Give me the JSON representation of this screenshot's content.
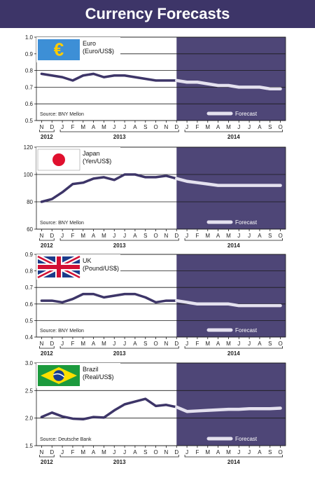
{
  "page_title": "Currency Forecasts",
  "colors": {
    "title_bg": "#3d3568",
    "line": "#3d3568",
    "forecast_bg": "#4e4677",
    "forecast_line": "#e4e1ef",
    "grid": "#1a1a1a",
    "panel_bg": "#ffffff"
  },
  "month_letters": [
    "N",
    "D",
    "J",
    "F",
    "M",
    "A",
    "M",
    "J",
    "J",
    "A",
    "S",
    "O",
    "N",
    "D",
    "J",
    "F",
    "M",
    "A",
    "M",
    "J",
    "J",
    "A",
    "S",
    "O"
  ],
  "year_labels": [
    "2012",
    "2013",
    "2014"
  ],
  "forecast_label": "Forecast",
  "chart_data": [
    {
      "type": "line",
      "flag": "eu-flag",
      "title": "Euro",
      "subtitle": "(Euro/US$)",
      "source": "Source: BNY Mellon",
      "ylim": [
        0.5,
        1.0
      ],
      "ytick_labels": [
        "1.0",
        "0.9",
        "0.8",
        "0.7",
        "0.6",
        "0.5"
      ],
      "yticks": [
        1.0,
        0.9,
        0.8,
        0.7,
        0.6,
        0.5
      ],
      "grid": "horizontal",
      "series": [
        {
          "role": "historical",
          "x": [
            "N",
            "D",
            "J",
            "F",
            "M",
            "A",
            "M",
            "J",
            "J",
            "A",
            "S",
            "O",
            "N",
            "D"
          ],
          "values": [
            0.78,
            0.77,
            0.76,
            0.74,
            0.77,
            0.78,
            0.76,
            0.77,
            0.77,
            0.76,
            0.75,
            0.74,
            0.74,
            0.74
          ]
        },
        {
          "role": "forecast",
          "x": [
            "D",
            "J",
            "F",
            "M",
            "A",
            "M",
            "J",
            "J",
            "A",
            "S",
            "O"
          ],
          "values": [
            0.74,
            0.73,
            0.73,
            0.72,
            0.71,
            0.71,
            0.7,
            0.7,
            0.7,
            0.69,
            0.69
          ]
        }
      ]
    },
    {
      "type": "line",
      "flag": "japan-flag",
      "title": "Japan",
      "subtitle": "(Yen/US$)",
      "source": "Source: BNY Mellon",
      "ylim": [
        60,
        120
      ],
      "ytick_labels": [
        "120",
        "100",
        "80",
        "60"
      ],
      "yticks": [
        120,
        100,
        80,
        60
      ],
      "grid": "horizontal",
      "series": [
        {
          "role": "historical",
          "x": [
            "N",
            "D",
            "J",
            "F",
            "M",
            "A",
            "M",
            "J",
            "J",
            "A",
            "S",
            "O",
            "N",
            "D"
          ],
          "values": [
            80,
            82,
            87,
            93,
            94,
            97,
            98,
            96,
            100,
            100,
            98,
            98,
            99,
            97
          ]
        },
        {
          "role": "forecast",
          "x": [
            "D",
            "J",
            "F",
            "M",
            "A",
            "M",
            "J",
            "J",
            "A",
            "S",
            "O"
          ],
          "values": [
            97,
            95,
            94,
            93,
            92,
            92,
            92,
            92,
            92,
            92,
            92
          ]
        }
      ]
    },
    {
      "type": "line",
      "flag": "uk-flag",
      "title": "UK",
      "subtitle": "(Pound/US$)",
      "source": "Source: BNY Mellon",
      "ylim": [
        0.4,
        0.9
      ],
      "ytick_labels": [
        "0.9",
        "0.8",
        "0.7",
        "0.6",
        "0.5",
        "0.4"
      ],
      "yticks": [
        0.9,
        0.8,
        0.7,
        0.6,
        0.5,
        0.4
      ],
      "grid": "horizontal",
      "series": [
        {
          "role": "historical",
          "x": [
            "N",
            "D",
            "J",
            "F",
            "M",
            "A",
            "M",
            "J",
            "J",
            "A",
            "S",
            "O",
            "N",
            "D"
          ],
          "values": [
            0.62,
            0.62,
            0.61,
            0.63,
            0.66,
            0.66,
            0.64,
            0.65,
            0.66,
            0.66,
            0.64,
            0.61,
            0.62,
            0.62
          ]
        },
        {
          "role": "forecast",
          "x": [
            "D",
            "J",
            "F",
            "M",
            "A",
            "M",
            "J",
            "J",
            "A",
            "S",
            "O"
          ],
          "values": [
            0.62,
            0.61,
            0.6,
            0.6,
            0.6,
            0.6,
            0.59,
            0.59,
            0.59,
            0.59,
            0.59
          ]
        }
      ]
    },
    {
      "type": "line",
      "flag": "brazil-flag",
      "title": "Brazil",
      "subtitle": "(Real/US$)",
      "source": "Source: Deutsche Bank",
      "ylim": [
        1.5,
        3.0
      ],
      "ytick_labels": [
        "3.0",
        "2.5",
        "2.0",
        "1.5"
      ],
      "yticks": [
        3.0,
        2.5,
        2.0,
        1.5
      ],
      "grid": "horizontal",
      "series": [
        {
          "role": "historical",
          "x": [
            "N",
            "D",
            "J",
            "F",
            "M",
            "A",
            "M",
            "J",
            "J",
            "A",
            "S",
            "O",
            "N",
            "D"
          ],
          "values": [
            2.02,
            2.1,
            2.03,
            1.99,
            1.98,
            2.02,
            2.01,
            2.14,
            2.25,
            2.3,
            2.35,
            2.22,
            2.24,
            2.2
          ]
        },
        {
          "role": "forecast",
          "x": [
            "D",
            "J",
            "F",
            "M",
            "A",
            "M",
            "J",
            "J",
            "A",
            "S",
            "O"
          ],
          "values": [
            2.2,
            2.12,
            2.13,
            2.14,
            2.15,
            2.16,
            2.16,
            2.17,
            2.17,
            2.17,
            2.18
          ]
        }
      ]
    }
  ]
}
